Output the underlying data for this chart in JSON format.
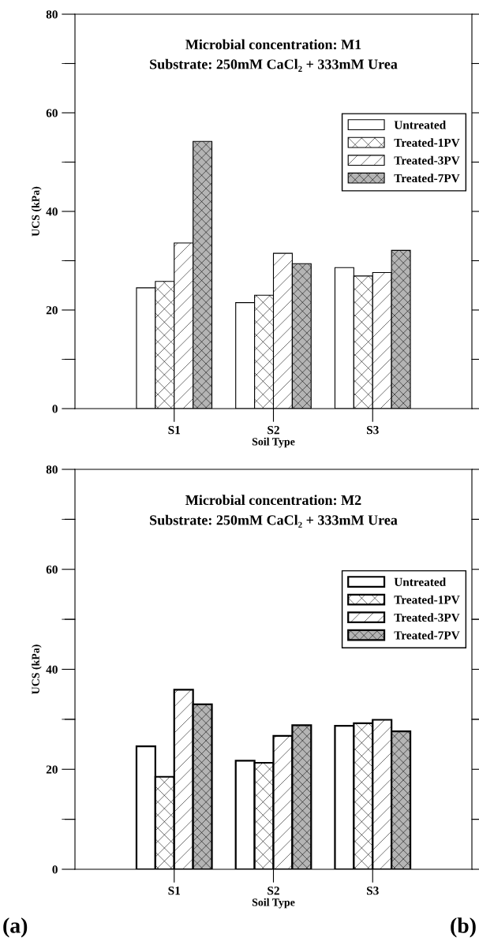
{
  "chart_data": [
    {
      "type": "bar",
      "title": "Microbial concentration: M1",
      "subtitle": "Substrate: 250mM CaCl₂ + 333mM Urea",
      "xlabel": "Soil Type",
      "ylabel": "UCS (kPa)",
      "categories": [
        "S1",
        "S2",
        "S3"
      ],
      "series": [
        {
          "name": "Untreated",
          "color": "#ffffff",
          "values": [
            24.5,
            21.5,
            28.6
          ]
        },
        {
          "name": "Treated-1PV",
          "color": "#ffffff",
          "values": [
            25.8,
            23.0,
            26.9
          ]
        },
        {
          "name": "Treated-3PV",
          "color": "#ffffff",
          "values": [
            33.6,
            31.5,
            27.6
          ]
        },
        {
          "name": "Treated-7PV",
          "color": "#b4b4b4",
          "values": [
            54.2,
            29.4,
            32.1
          ]
        }
      ],
      "ylim": [
        0,
        80
      ],
      "yticks": [
        0,
        {
          "value": 10,
          "label": null
        },
        20,
        {
          "value": 30,
          "label": null
        },
        40,
        {
          "value": 50,
          "label": null
        },
        60,
        {
          "value": 70,
          "label": null
        },
        80
      ],
      "grid": false,
      "legend": "right"
    },
    {
      "type": "bar",
      "title": "Microbial concentration: M2",
      "subtitle": "Substrate: 250mM CaCl₂ + 333mM Urea",
      "xlabel": "Soil Type",
      "ylabel": "UCS (kPa)",
      "categories": [
        "S1",
        "S2",
        "S3"
      ],
      "series": [
        {
          "name": "Untreated",
          "color": "#ffffff",
          "values": [
            24.6,
            21.7,
            28.7
          ]
        },
        {
          "name": "Treated-1PV",
          "color": "#ffffff",
          "values": [
            18.5,
            21.3,
            29.2
          ]
        },
        {
          "name": "Treated-3PV",
          "color": "#ffffff",
          "values": [
            35.9,
            26.7,
            29.9
          ]
        },
        {
          "name": "Treated-7PV",
          "color": "#b4b4b4",
          "values": [
            33.0,
            28.8,
            27.6
          ]
        }
      ],
      "ylim": [
        0,
        80
      ],
      "yticks": [
        0,
        {
          "value": 10,
          "label": null
        },
        20,
        {
          "value": 30,
          "label": null
        },
        40,
        {
          "value": 50,
          "label": null
        },
        60,
        {
          "value": 70,
          "label": null
        },
        80
      ],
      "grid": false,
      "legend": "right",
      "annotations": [
        "(a)",
        "(b)"
      ]
    }
  ]
}
